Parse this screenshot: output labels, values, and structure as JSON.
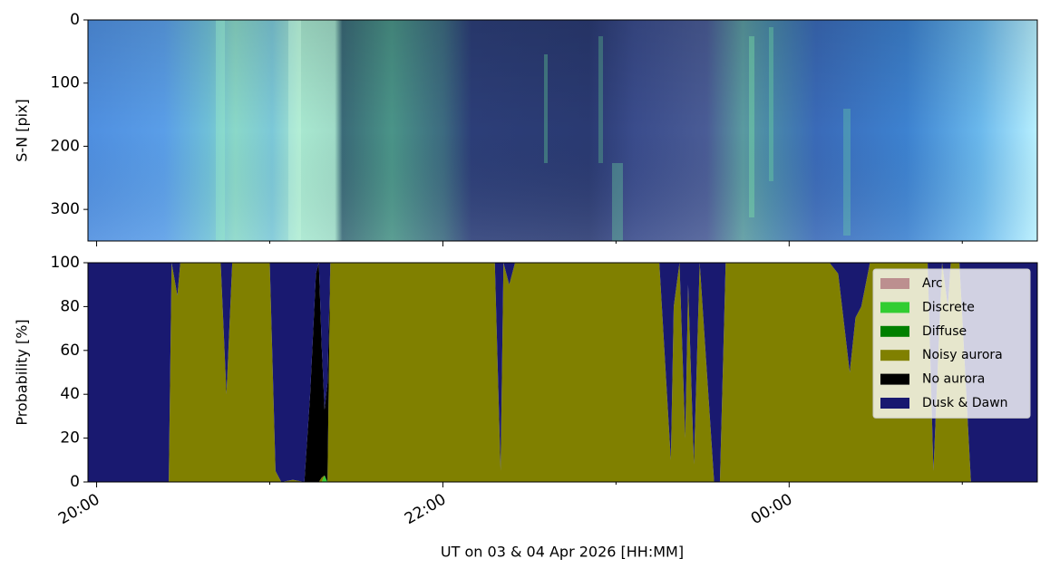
{
  "chart_data": [
    {
      "type": "image",
      "ylabel": "S-N [pix]",
      "ylim": [
        350,
        0
      ],
      "yticks": [
        0,
        100,
        200,
        300
      ]
    },
    {
      "type": "stackplot",
      "ylabel": "Probability [%]",
      "xlabel": "UT on 03 & 04 Apr 2026 [HH:MM]",
      "xlim": [
        "19:57",
        "01:26"
      ],
      "xticks": [
        "20:00",
        "22:00",
        "00:00"
      ],
      "xticks_minor": [
        "21:00",
        "23:00",
        "01:00"
      ],
      "ylim": [
        0,
        100
      ],
      "yticks": [
        0,
        20,
        40,
        60,
        80,
        100
      ],
      "legend": "upper right",
      "x": [
        "19:57",
        "20:25",
        "20:26",
        "20:28",
        "20:29",
        "20:43",
        "20:45",
        "20:47",
        "21:00",
        "21:02",
        "21:04",
        "21:08",
        "21:12",
        "21:14",
        "21:16",
        "21:17",
        "21:18",
        "21:19",
        "21:20",
        "21:21",
        "22:18",
        "22:20",
        "22:21",
        "22:23",
        "22:25",
        "23:15",
        "23:19",
        "23:20",
        "23:22",
        "23:24",
        "23:25",
        "23:27",
        "23:29",
        "23:30",
        "23:34",
        "23:36",
        "23:38",
        "00:14",
        "00:17",
        "00:21",
        "00:23",
        "00:25",
        "00:28",
        "00:48",
        "00:50",
        "00:53",
        "00:55",
        "00:56",
        "00:59",
        "01:03",
        "01:26"
      ],
      "series": [
        {
          "name": "Arc",
          "color": "#bc8f8f",
          "values": [
            0,
            0,
            0,
            0,
            0,
            0,
            0,
            0,
            0,
            0,
            0,
            0,
            0,
            0,
            0,
            0,
            0,
            0,
            0,
            0,
            0,
            0,
            0,
            0,
            0,
            0,
            0,
            0,
            0,
            0,
            0,
            0,
            0,
            0,
            0,
            0,
            0,
            0,
            0,
            0,
            0,
            0,
            0,
            0,
            0,
            0,
            0,
            0,
            0,
            0,
            0
          ]
        },
        {
          "name": "Discrete",
          "color": "#32cd32",
          "values": [
            0,
            0,
            0,
            0,
            0,
            0,
            0,
            0,
            0,
            0,
            0,
            0,
            0,
            0,
            0,
            0,
            0,
            3,
            0,
            0,
            0,
            0,
            0,
            0,
            0,
            0,
            0,
            0,
            0,
            0,
            0,
            0,
            0,
            0,
            0,
            0,
            0,
            0,
            0,
            0,
            0,
            0,
            0,
            0,
            0,
            0,
            0,
            0,
            0,
            0,
            0
          ]
        },
        {
          "name": "Diffuse",
          "color": "#008000",
          "values": [
            0,
            0,
            0,
            0,
            0,
            0,
            0,
            0,
            0,
            0,
            0,
            0,
            0,
            0,
            0,
            0,
            0,
            0,
            0,
            0,
            0,
            0,
            0,
            0,
            0,
            0,
            0,
            0,
            0,
            0,
            0,
            0,
            0,
            0,
            0,
            0,
            0,
            0,
            0,
            0,
            0,
            0,
            0,
            0,
            0,
            0,
            0,
            0,
            0,
            0,
            0
          ]
        },
        {
          "name": "Noisy aurora",
          "color": "#808000",
          "values": [
            0,
            0,
            100,
            85,
            100,
            100,
            40,
            100,
            100,
            5,
            0,
            1,
            0,
            0,
            0,
            0,
            2,
            0,
            0,
            100,
            100,
            5,
            100,
            90,
            100,
            100,
            10,
            80,
            100,
            20,
            90,
            8,
            100,
            80,
            0,
            0,
            100,
            100,
            95,
            50,
            75,
            80,
            100,
            100,
            5,
            100,
            80,
            100,
            100,
            0,
            0
          ]
        },
        {
          "name": "No aurora",
          "color": "#000000",
          "values": [
            0,
            0,
            0,
            0,
            0,
            0,
            0,
            0,
            0,
            0,
            0,
            0,
            0,
            40,
            95,
            100,
            60,
            30,
            45,
            0,
            0,
            0,
            0,
            0,
            0,
            0,
            0,
            0,
            0,
            0,
            0,
            0,
            0,
            0,
            0,
            0,
            0,
            0,
            0,
            0,
            0,
            0,
            0,
            0,
            0,
            0,
            0,
            0,
            0,
            0,
            0
          ]
        },
        {
          "name": "Dusk & Dawn",
          "color": "#191970",
          "values": [
            100,
            100,
            0,
            15,
            0,
            0,
            60,
            0,
            0,
            95,
            100,
            99,
            100,
            60,
            5,
            0,
            38,
            67,
            55,
            0,
            0,
            95,
            0,
            10,
            0,
            0,
            90,
            20,
            0,
            80,
            10,
            92,
            0,
            20,
            100,
            100,
            0,
            0,
            5,
            50,
            25,
            20,
            0,
            0,
            95,
            0,
            20,
            0,
            0,
            100,
            100
          ]
        }
      ]
    }
  ]
}
